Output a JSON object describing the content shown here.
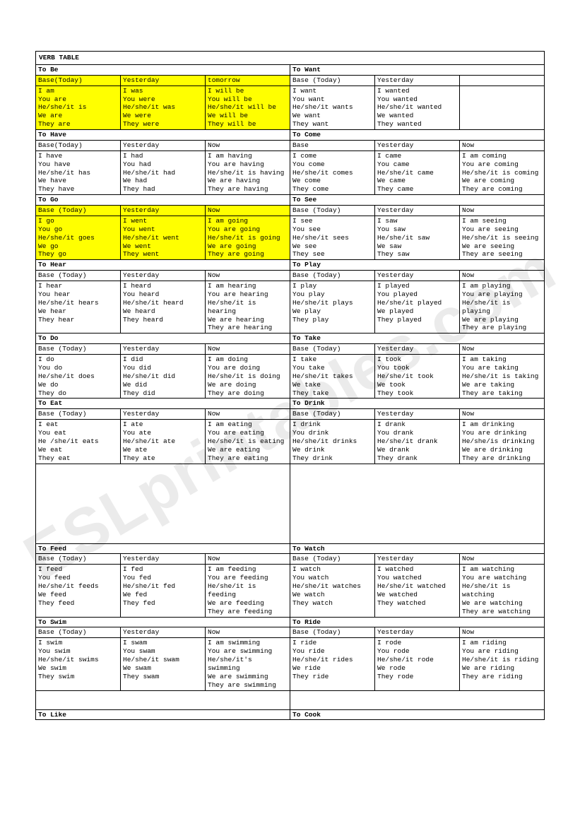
{
  "title": "VERB TABLE",
  "watermark": "ESLprintables.com",
  "colors": {
    "highlight": "#ffff00",
    "border": "#000000",
    "bg": "#ffffff",
    "watermark": "rgba(0,0,0,0.08)"
  },
  "rows": [
    {
      "left": {
        "name": "To Be",
        "highlight": true,
        "h": [
          "Base(Today)",
          "Yesterday",
          "tomorrow"
        ],
        "c": [
          [
            "I am",
            "You are",
            "He/she/it is",
            "We are",
            "They are"
          ],
          [
            "I was",
            "You were",
            "He/she/it was",
            "We were",
            "They were"
          ],
          [
            "I will be",
            "You will be",
            "He/she/it will be",
            "We will be",
            "They will be"
          ]
        ]
      },
      "right": {
        "name": "To Want",
        "highlight": false,
        "h": [
          "Base (Today)",
          "Yesterday",
          ""
        ],
        "c": [
          [
            "I want",
            "You want",
            "He/she/it wants",
            "We want",
            "They want"
          ],
          [
            "I wanted",
            "You wanted",
            "He/she/it wanted",
            "We wanted",
            "They wanted"
          ],
          []
        ]
      }
    },
    {
      "left": {
        "name": "To Have",
        "highlight": false,
        "h": [
          "Base(Today)",
          "Yesterday",
          "Now"
        ],
        "c": [
          [
            "I have",
            "You have",
            "He/she/it has",
            "We have",
            "They have"
          ],
          [
            "I had",
            "You had",
            "He/she/it had",
            "We had",
            "They had"
          ],
          [
            "I am having",
            "You are having",
            "He/she/it is having",
            "We are having",
            "They are having"
          ]
        ]
      },
      "right": {
        "name": "To Come",
        "highlight": false,
        "h": [
          "Base",
          "Yesterday",
          "Now"
        ],
        "c": [
          [
            "I come",
            "You come",
            "He/she/it comes",
            "We come",
            "They come"
          ],
          [
            "I came",
            "You came",
            "He/she/it came",
            "We came",
            "They came"
          ],
          [
            "I am coming",
            "You are coming",
            "He/she/it is coming",
            "We are coming",
            "They are coming"
          ]
        ]
      }
    },
    {
      "left": {
        "name": "To Go",
        "highlight": true,
        "h": [
          "Base (Today)",
          "Yesterday",
          "Now"
        ],
        "c": [
          [
            "I go",
            "You go",
            "He/she/it goes",
            "We go",
            "They go"
          ],
          [
            "I went",
            "You went",
            "He/she/it went",
            "We went",
            "They went"
          ],
          [
            "I am going",
            "You are going",
            "He/she/it is going",
            "We are going",
            "They are going"
          ]
        ]
      },
      "right": {
        "name": "To See",
        "highlight": false,
        "h": [
          "Base (Today)",
          "Yesterday",
          "Now"
        ],
        "c": [
          [
            "I see",
            "You see",
            "He/she/it sees",
            "We see",
            "They see"
          ],
          [
            "I saw",
            "You saw",
            "He/she/it saw",
            "We saw",
            "They saw"
          ],
          [
            "I am seeing",
            "You are seeing",
            "He/she/it is seeing",
            "We are seeing",
            "They are seeing"
          ]
        ]
      }
    },
    {
      "left": {
        "name": "To Hear",
        "highlight": false,
        "h": [
          "Base (Today)",
          "Yesterday",
          "Now"
        ],
        "c": [
          [
            "I hear",
            "You hear",
            "He/she/it hears",
            "We hear",
            "They hear"
          ],
          [
            "I heard",
            "You heard",
            "He/she/it heard",
            "We heard",
            "They heard"
          ],
          [
            "I am hearing",
            "You are hearing",
            "He/she/it is hearing",
            "We are hearing",
            "They are hearing"
          ]
        ]
      },
      "right": {
        "name": "To Play",
        "highlight": false,
        "h": [
          "Base (Today)",
          "Yesterday",
          "Now"
        ],
        "c": [
          [
            "I play",
            "You play",
            "He/she/it plays",
            "We play",
            "They play"
          ],
          [
            "I played",
            "You played",
            "He/she/it played",
            "We played",
            "They played"
          ],
          [
            "I am playing",
            "You are playing",
            "He/she/it is playing",
            "We are playing",
            "They are playing"
          ]
        ]
      }
    },
    {
      "left": {
        "name": "To Do",
        "highlight": false,
        "h": [
          "Base (Today)",
          "Yesterday",
          "Now"
        ],
        "c": [
          [
            "I do",
            "You do",
            "He/she/it does",
            "We do",
            "They do"
          ],
          [
            "I did",
            "You did",
            "He/she/it did",
            "We did",
            "They did"
          ],
          [
            "I am doing",
            "You are doing",
            "He/she/it is doing",
            "We are doing",
            "They are doing"
          ]
        ]
      },
      "right": {
        "name": "To Take",
        "highlight": false,
        "h": [
          "Base (Today)",
          "Yesterday",
          "Now"
        ],
        "c": [
          [
            "I take",
            "You take",
            "He/she/it takes",
            "We take",
            "They take"
          ],
          [
            "I took",
            "You took",
            "He/she/it took",
            "We took",
            "They took"
          ],
          [
            "I am taking",
            "You are taking",
            "He/she/it is taking",
            "We are taking",
            "They are taking"
          ]
        ]
      }
    },
    {
      "left": {
        "name": "To Eat",
        "highlight": false,
        "h": [
          "Base (Today)",
          "Yesterday",
          "Now"
        ],
        "c": [
          [
            "I eat",
            "You eat",
            "He /she/it eats",
            "We eat",
            "They eat"
          ],
          [
            "I ate",
            "You ate",
            "He/she/it ate",
            "We ate",
            "They ate"
          ],
          [
            "I am eating",
            "You are eating",
            "He/she/it is eating",
            "We are eating",
            "They are eating"
          ]
        ]
      },
      "right": {
        "name": "To Drink",
        "highlight": false,
        "h": [
          "Base (Today)",
          "Yesterday",
          "Now"
        ],
        "c": [
          [
            "I drink",
            "You drink",
            "He/she/it drinks",
            "We drink",
            "They drink"
          ],
          [
            "I drank",
            "You drank",
            "He/she/it drank",
            "We drank",
            "They drank"
          ],
          [
            "I am drinking",
            "You are drinking",
            "He/she/is drinking",
            "We are drinking",
            "They are drinking"
          ]
        ]
      }
    },
    {
      "spacer": true
    },
    {
      "left": {
        "name": "To Feed",
        "highlight": false,
        "h": [
          "Base (Today)",
          "Yesterday",
          "Now"
        ],
        "c": [
          [
            "I feed",
            "You feed",
            "He/she/it feeds",
            "We feed",
            "They feed"
          ],
          [
            "I fed",
            "You fed",
            "He/she/it fed",
            "We fed",
            "They fed"
          ],
          [
            "I am feeding",
            "You are feeding",
            "He/she/it is feeding",
            "We are feeding",
            "They are feeding"
          ]
        ]
      },
      "right": {
        "name": "To Watch",
        "highlight": false,
        "h": [
          "Base (Today)",
          "Yesterday",
          "Now"
        ],
        "c": [
          [
            "I watch",
            "You watch",
            "He/she/it watches",
            "We watch",
            "They watch"
          ],
          [
            "I watched",
            "You watched",
            "He/she/it watched",
            "We watched",
            "They watched"
          ],
          [
            "I am watching",
            "You are watching",
            "He/she/it is watching",
            "We are watching",
            "They are watching"
          ]
        ]
      }
    },
    {
      "left": {
        "name": "To Swim",
        "highlight": false,
        "h": [
          "Base (Today)",
          "Yesterday",
          "Now"
        ],
        "c": [
          [
            "I swim",
            "You swim",
            "He/she/it swims",
            "We swim",
            "They swim"
          ],
          [
            "I swam",
            "You swam",
            "He/she/it swam",
            "We swam",
            "They swam"
          ],
          [
            "I am swimming",
            "You are swimming",
            "He/she/it's swimming",
            "We are swimming",
            "They are swimming"
          ]
        ]
      },
      "right": {
        "name": "To Ride",
        "highlight": false,
        "h": [
          "Base (Today)",
          "Yesterday",
          "Now"
        ],
        "c": [
          [
            "I ride",
            "You ride",
            "He/she/it rides",
            "We ride",
            "They ride"
          ],
          [
            "I rode",
            "You rode",
            "He/she/it rode",
            "We rode",
            "They rode"
          ],
          [
            "I am riding",
            "You are riding",
            "He/she/it is riding",
            "We are riding",
            "They are riding"
          ]
        ]
      }
    },
    {
      "spacer": true,
      "small": true
    },
    {
      "left": {
        "name": "To Like",
        "empty": true
      },
      "right": {
        "name": "To Cook",
        "empty": true
      }
    }
  ]
}
